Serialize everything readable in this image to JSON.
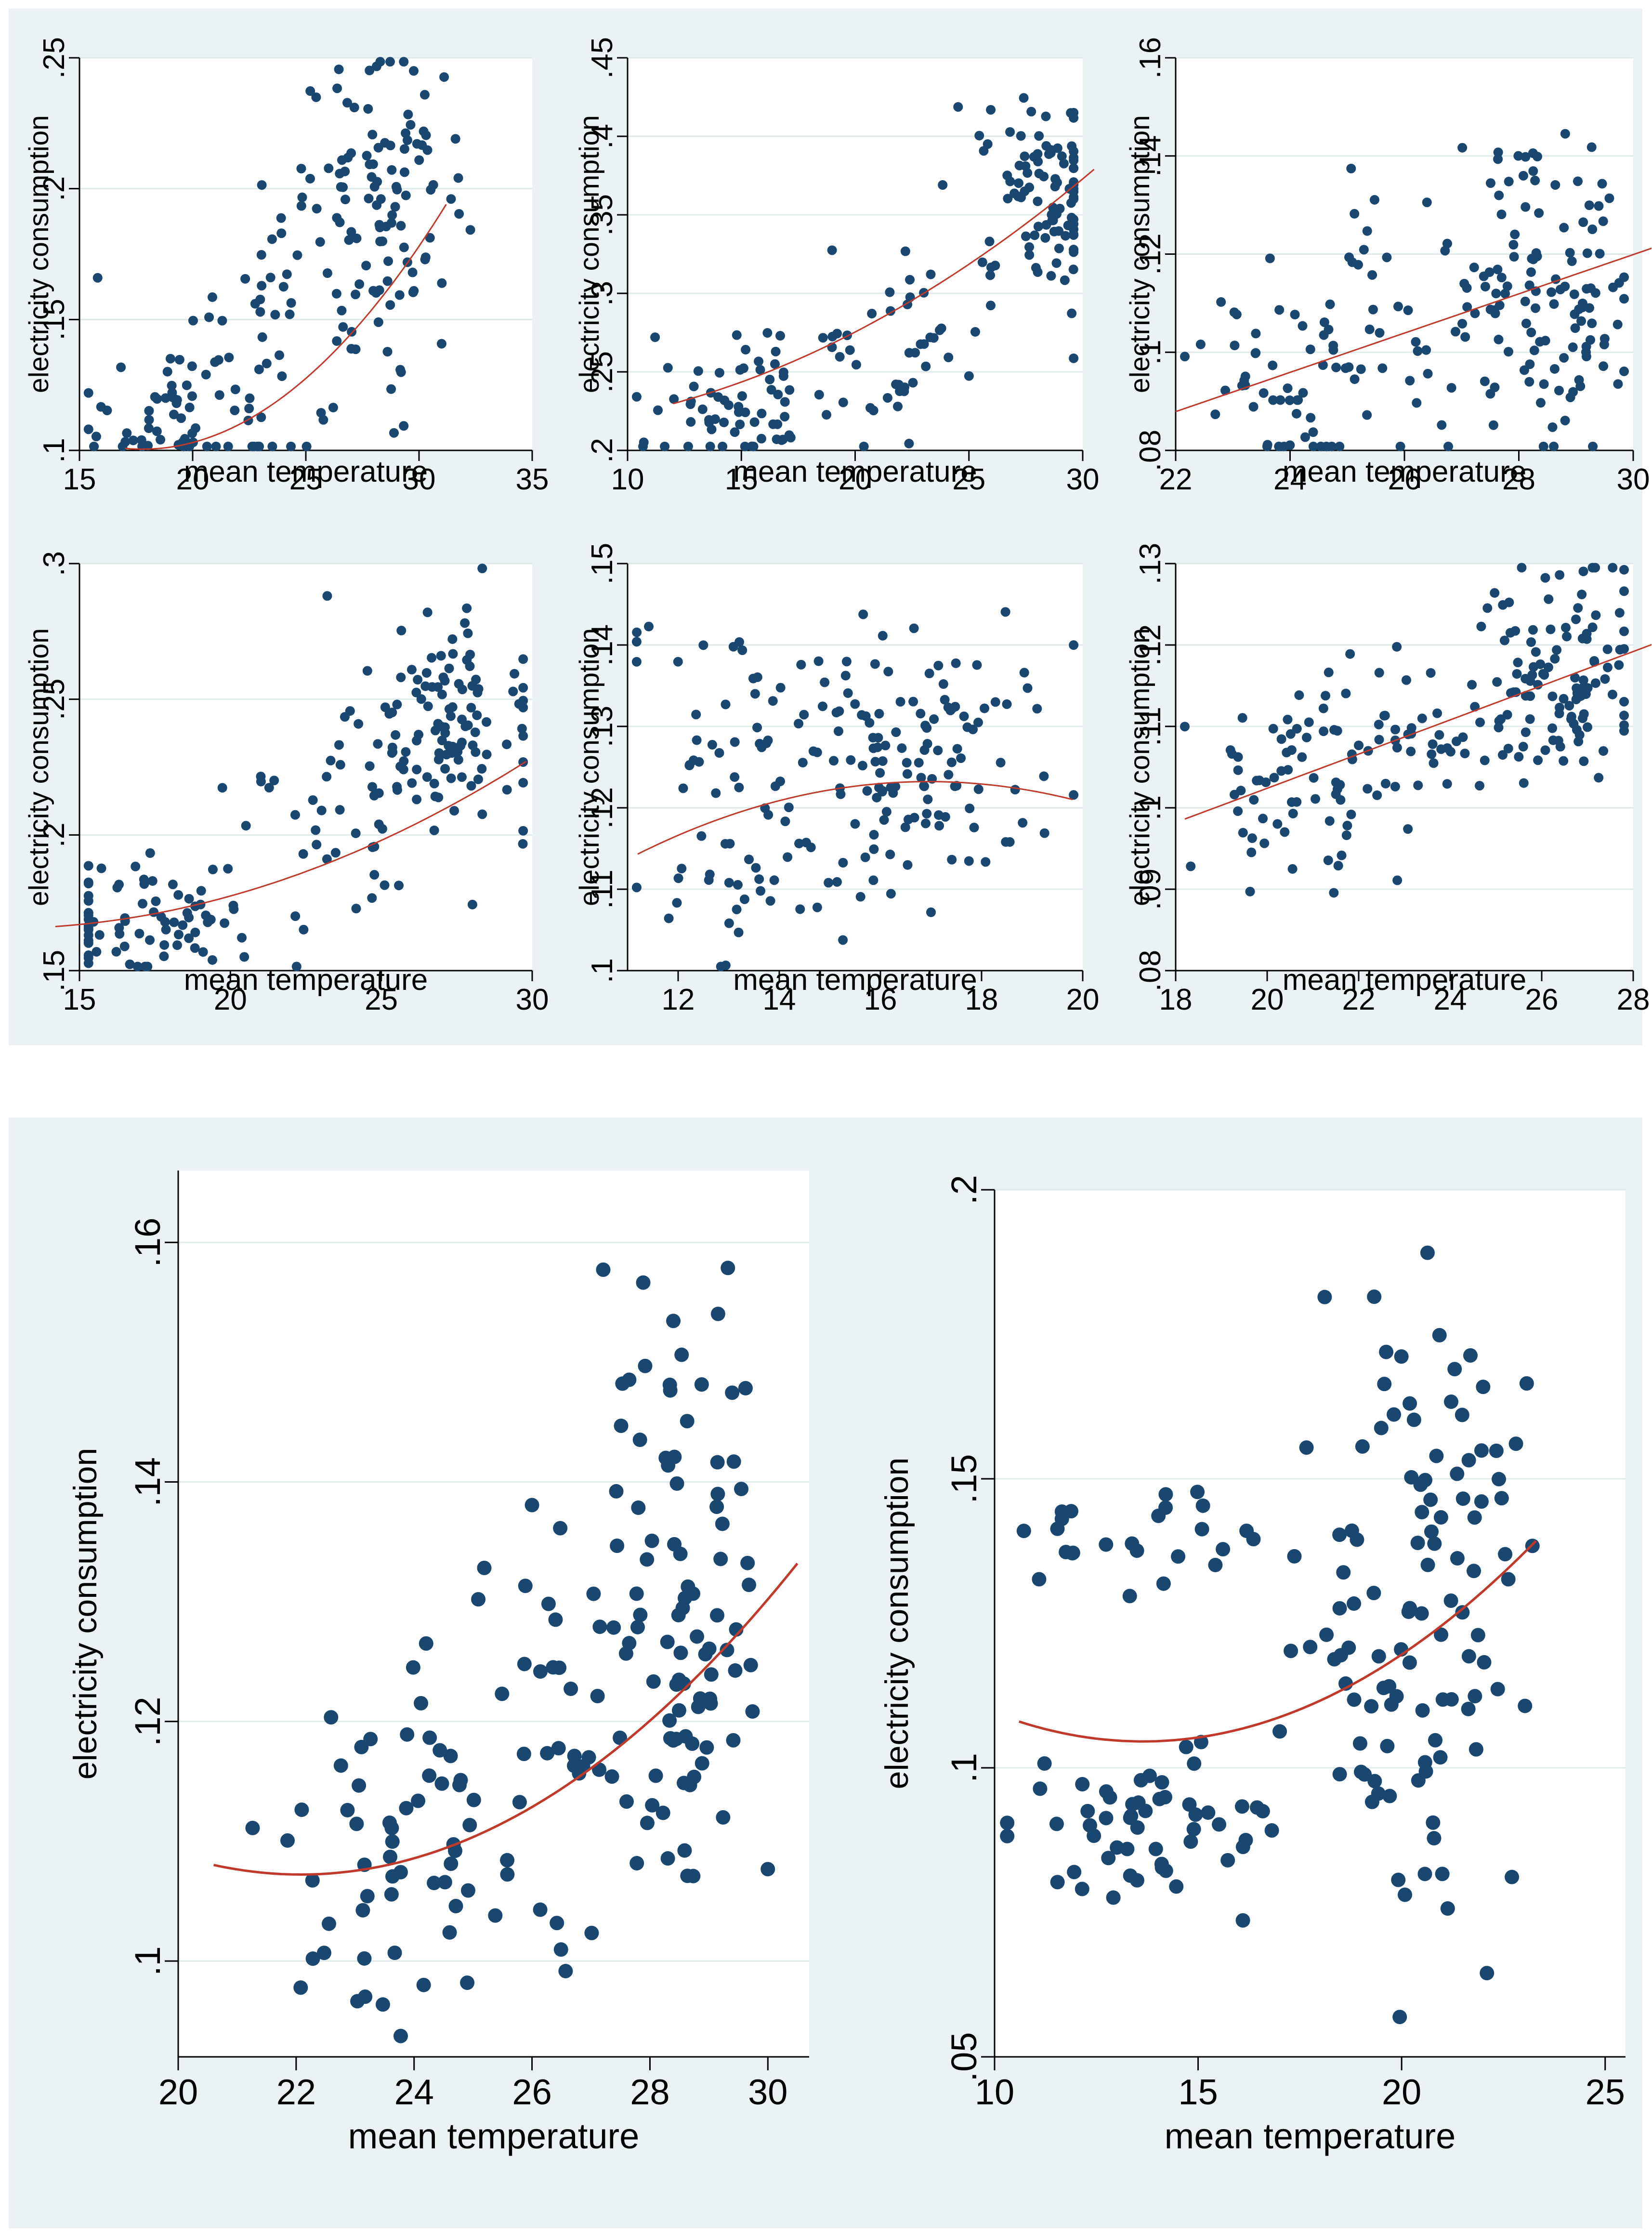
{
  "colors": {
    "panel_bg": "#eaf2f3",
    "plot_bg": "#ffffff",
    "marker": "#1a476f",
    "fit_line": "#c0392b",
    "grid": "#dde9ea"
  },
  "chart_data": [
    {
      "id": "c1",
      "type": "scatter",
      "xlabel": "mean temperature",
      "ylabel": "electricity consumption",
      "xlim": [
        15,
        35
      ],
      "ylim": [
        0.1,
        0.25
      ],
      "xticks": [
        "15",
        "20",
        "25",
        "30",
        "35"
      ],
      "yticks": [
        ".1",
        ".15",
        ".2",
        ".25"
      ],
      "xtick_values": [
        15,
        20,
        25,
        30,
        35
      ],
      "ytick_values": [
        0.1,
        0.15,
        0.2,
        0.25
      ],
      "fit": {
        "x_start": 17,
        "x_end": 31.2,
        "coef": [
          0.265,
          -0.0185,
          0.00052
        ]
      },
      "cluster_centers": [
        [
          19.5,
          0.113,
          2.2,
          0.015,
          60
        ],
        [
          23.5,
          0.155,
          2.2,
          0.03,
          45
        ],
        [
          28.5,
          0.195,
          1.8,
          0.028,
          105
        ]
      ]
    },
    {
      "id": "c2",
      "type": "scatter",
      "xlabel": "mean temperature",
      "ylabel": "electricity consumption",
      "xlim": [
        10,
        30
      ],
      "ylim": [
        0.2,
        0.45
      ],
      "xticks": [
        "10",
        "15",
        "20",
        "25",
        "30"
      ],
      "yticks": [
        ".2",
        ".25",
        ".3",
        ".35",
        ".4",
        ".45"
      ],
      "xtick_values": [
        10,
        15,
        20,
        25,
        30
      ],
      "ytick_values": [
        0.2,
        0.25,
        0.3,
        0.35,
        0.4,
        0.45
      ],
      "fit": {
        "x_start": 12,
        "x_end": 30.5,
        "coef": [
          0.2154,
          -0.0015,
          0.000225
        ]
      },
      "cluster_centers": [
        [
          15,
          0.228,
          2.0,
          0.02,
          60
        ],
        [
          21,
          0.265,
          2.6,
          0.03,
          50
        ],
        [
          28.5,
          0.365,
          1.5,
          0.03,
          100
        ]
      ]
    },
    {
      "id": "c3",
      "type": "scatter",
      "xlabel": "mean temperature",
      "ylabel": "electricity consumption",
      "xlim": [
        22,
        30
      ],
      "ylim": [
        0.08,
        0.16
      ],
      "xticks": [
        "22",
        "24",
        "26",
        "28",
        "30"
      ],
      "yticks": [
        ".08",
        ".1",
        ".12",
        ".14",
        ".16"
      ],
      "xtick_values": [
        22,
        24,
        26,
        28,
        30
      ],
      "ytick_values": [
        0.08,
        0.1,
        0.12,
        0.14,
        0.16
      ],
      "fit": {
        "x_start": 22,
        "x_end": 30.8,
        "coef": [
          -0.0001,
          0.004,
          0.0
        ]
      },
      "cluster_centers": [
        [
          24.2,
          0.096,
          0.9,
          0.012,
          60
        ],
        [
          26.5,
          0.108,
          1.0,
          0.016,
          40
        ],
        [
          28.6,
          0.112,
          0.8,
          0.016,
          110
        ]
      ]
    },
    {
      "id": "c4",
      "type": "scatter",
      "xlabel": "mean temperature",
      "ylabel": "electricity consumption",
      "xlim": [
        15,
        30
      ],
      "ylim": [
        0.15,
        0.3
      ],
      "xticks": [
        "15",
        "20",
        "25",
        "30"
      ],
      "yticks": [
        ".15",
        ".2",
        ".25",
        ".3"
      ],
      "xtick_values": [
        15,
        20,
        25,
        30
      ],
      "ytick_values": [
        0.15,
        0.2,
        0.25,
        0.3
      ],
      "fit": {
        "x_start": 14.2,
        "x_end": 29.8,
        "coef": [
          0.1955,
          -0.0049,
          0.0002
        ]
      },
      "cluster_centers": [
        [
          17.5,
          0.168,
          2.0,
          0.012,
          80
        ],
        [
          23.5,
          0.205,
          2.0,
          0.022,
          40
        ],
        [
          27.5,
          0.245,
          1.5,
          0.02,
          110
        ]
      ]
    },
    {
      "id": "c5",
      "type": "scatter",
      "xlabel": "mean temperature",
      "ylabel": "electricity consumption",
      "xlim": [
        11,
        20
      ],
      "ylim": [
        0.1,
        0.15
      ],
      "xticks": [
        "12",
        "14",
        "16",
        "18",
        "20"
      ],
      "yticks": [
        ".1",
        ".11",
        ".12",
        ".13",
        ".14",
        ".15"
      ],
      "xtick_values": [
        12,
        14,
        16,
        18,
        20
      ],
      "ytick_values": [
        0.1,
        0.11,
        0.12,
        0.13,
        0.14,
        0.15
      ],
      "fit": {
        "x_start": 11.2,
        "x_end": 19.8,
        "coef": [
          0.0457,
          0.00915,
          -0.00027
        ]
      },
      "cluster_centers": [
        [
          13.5,
          0.119,
          1.3,
          0.01,
          70
        ],
        [
          16.8,
          0.124,
          0.9,
          0.006,
          90
        ],
        [
          15.5,
          0.136,
          2.2,
          0.005,
          40
        ]
      ]
    },
    {
      "id": "c6",
      "type": "scatter",
      "xlabel": "mean temperature",
      "ylabel": "electricity consumption",
      "xlim": [
        18,
        28
      ],
      "ylim": [
        0.08,
        0.13
      ],
      "xticks": [
        "18",
        "20",
        "22",
        "24",
        "26",
        "28"
      ],
      "yticks": [
        ".08",
        ".09",
        ".1",
        ".11",
        ".12",
        ".13"
      ],
      "xtick_values": [
        18,
        20,
        22,
        24,
        26,
        28
      ],
      "ytick_values": [
        0.08,
        0.09,
        0.1,
        0.11,
        0.12,
        0.13
      ],
      "fit": {
        "x_start": 18.2,
        "x_end": 28.5,
        "coef": [
          0.0604,
          0.0021,
          0.0
        ]
      },
      "cluster_centers": [
        [
          20.5,
          0.102,
          1.0,
          0.007,
          60
        ],
        [
          23.5,
          0.109,
          1.0,
          0.006,
          50
        ],
        [
          26.3,
          0.117,
          0.9,
          0.007,
          110
        ]
      ]
    },
    {
      "id": "c7",
      "type": "scatter",
      "xlabel": "mean temperature",
      "ylabel": "electricity consumption",
      "xlim": [
        20,
        30.7
      ],
      "ylim": [
        0.092,
        0.166
      ],
      "xticks": [
        "20",
        "22",
        "24",
        "26",
        "28",
        "30"
      ],
      "yticks": [
        ".1",
        ".12",
        ".14",
        ".16"
      ],
      "xtick_values": [
        20,
        22,
        24,
        26,
        28,
        30
      ],
      "ytick_values": [
        0.1,
        0.12,
        0.14,
        0.16
      ],
      "fit": {
        "x_start": 20.6,
        "x_end": 30.5,
        "coef": [
          0.2856,
          -0.01616,
          0.000366
        ]
      },
      "cluster_centers": [
        [
          23.8,
          0.11,
          0.9,
          0.009,
          55
        ],
        [
          26.5,
          0.118,
          1.0,
          0.012,
          40
        ],
        [
          28.6,
          0.13,
          0.7,
          0.012,
          90
        ]
      ]
    },
    {
      "id": "c8",
      "type": "scatter",
      "xlabel": "mean temperature",
      "ylabel": "electricity consumption",
      "xlim": [
        10,
        25.5
      ],
      "ylim": [
        0.05,
        0.2
      ],
      "xticks": [
        "10",
        "15",
        "20",
        "25"
      ],
      "yticks": [
        ".05",
        ".1",
        ".15",
        ".2"
      ],
      "xtick_values": [
        10,
        15,
        20,
        25
      ],
      "ytick_values": [
        0.05,
        0.1,
        0.15,
        0.2
      ],
      "fit": {
        "x_start": 10.6,
        "x_end": 23.3,
        "coef": [
          0.1738,
          -0.01015,
          0.000372
        ]
      },
      "cluster_centers": [
        [
          14,
          0.089,
          1.9,
          0.007,
          55
        ],
        [
          13.5,
          0.139,
          1.6,
          0.005,
          25
        ],
        [
          20.5,
          0.13,
          1.5,
          0.03,
          110
        ]
      ]
    }
  ]
}
